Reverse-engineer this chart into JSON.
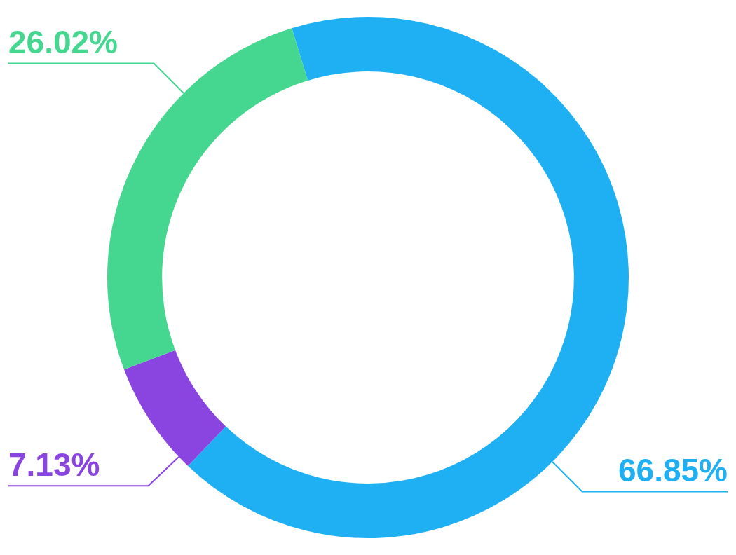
{
  "chart_data": {
    "type": "donut",
    "categories": [
      null,
      null,
      null
    ],
    "values": [
      66.85,
      7.13,
      26.02
    ],
    "colors": [
      "#1fb0f4",
      "#8a45e0",
      "#45d68f"
    ],
    "value_labels": [
      "66.85%",
      "7.13%",
      "26.02%"
    ],
    "legend": false
  }
}
